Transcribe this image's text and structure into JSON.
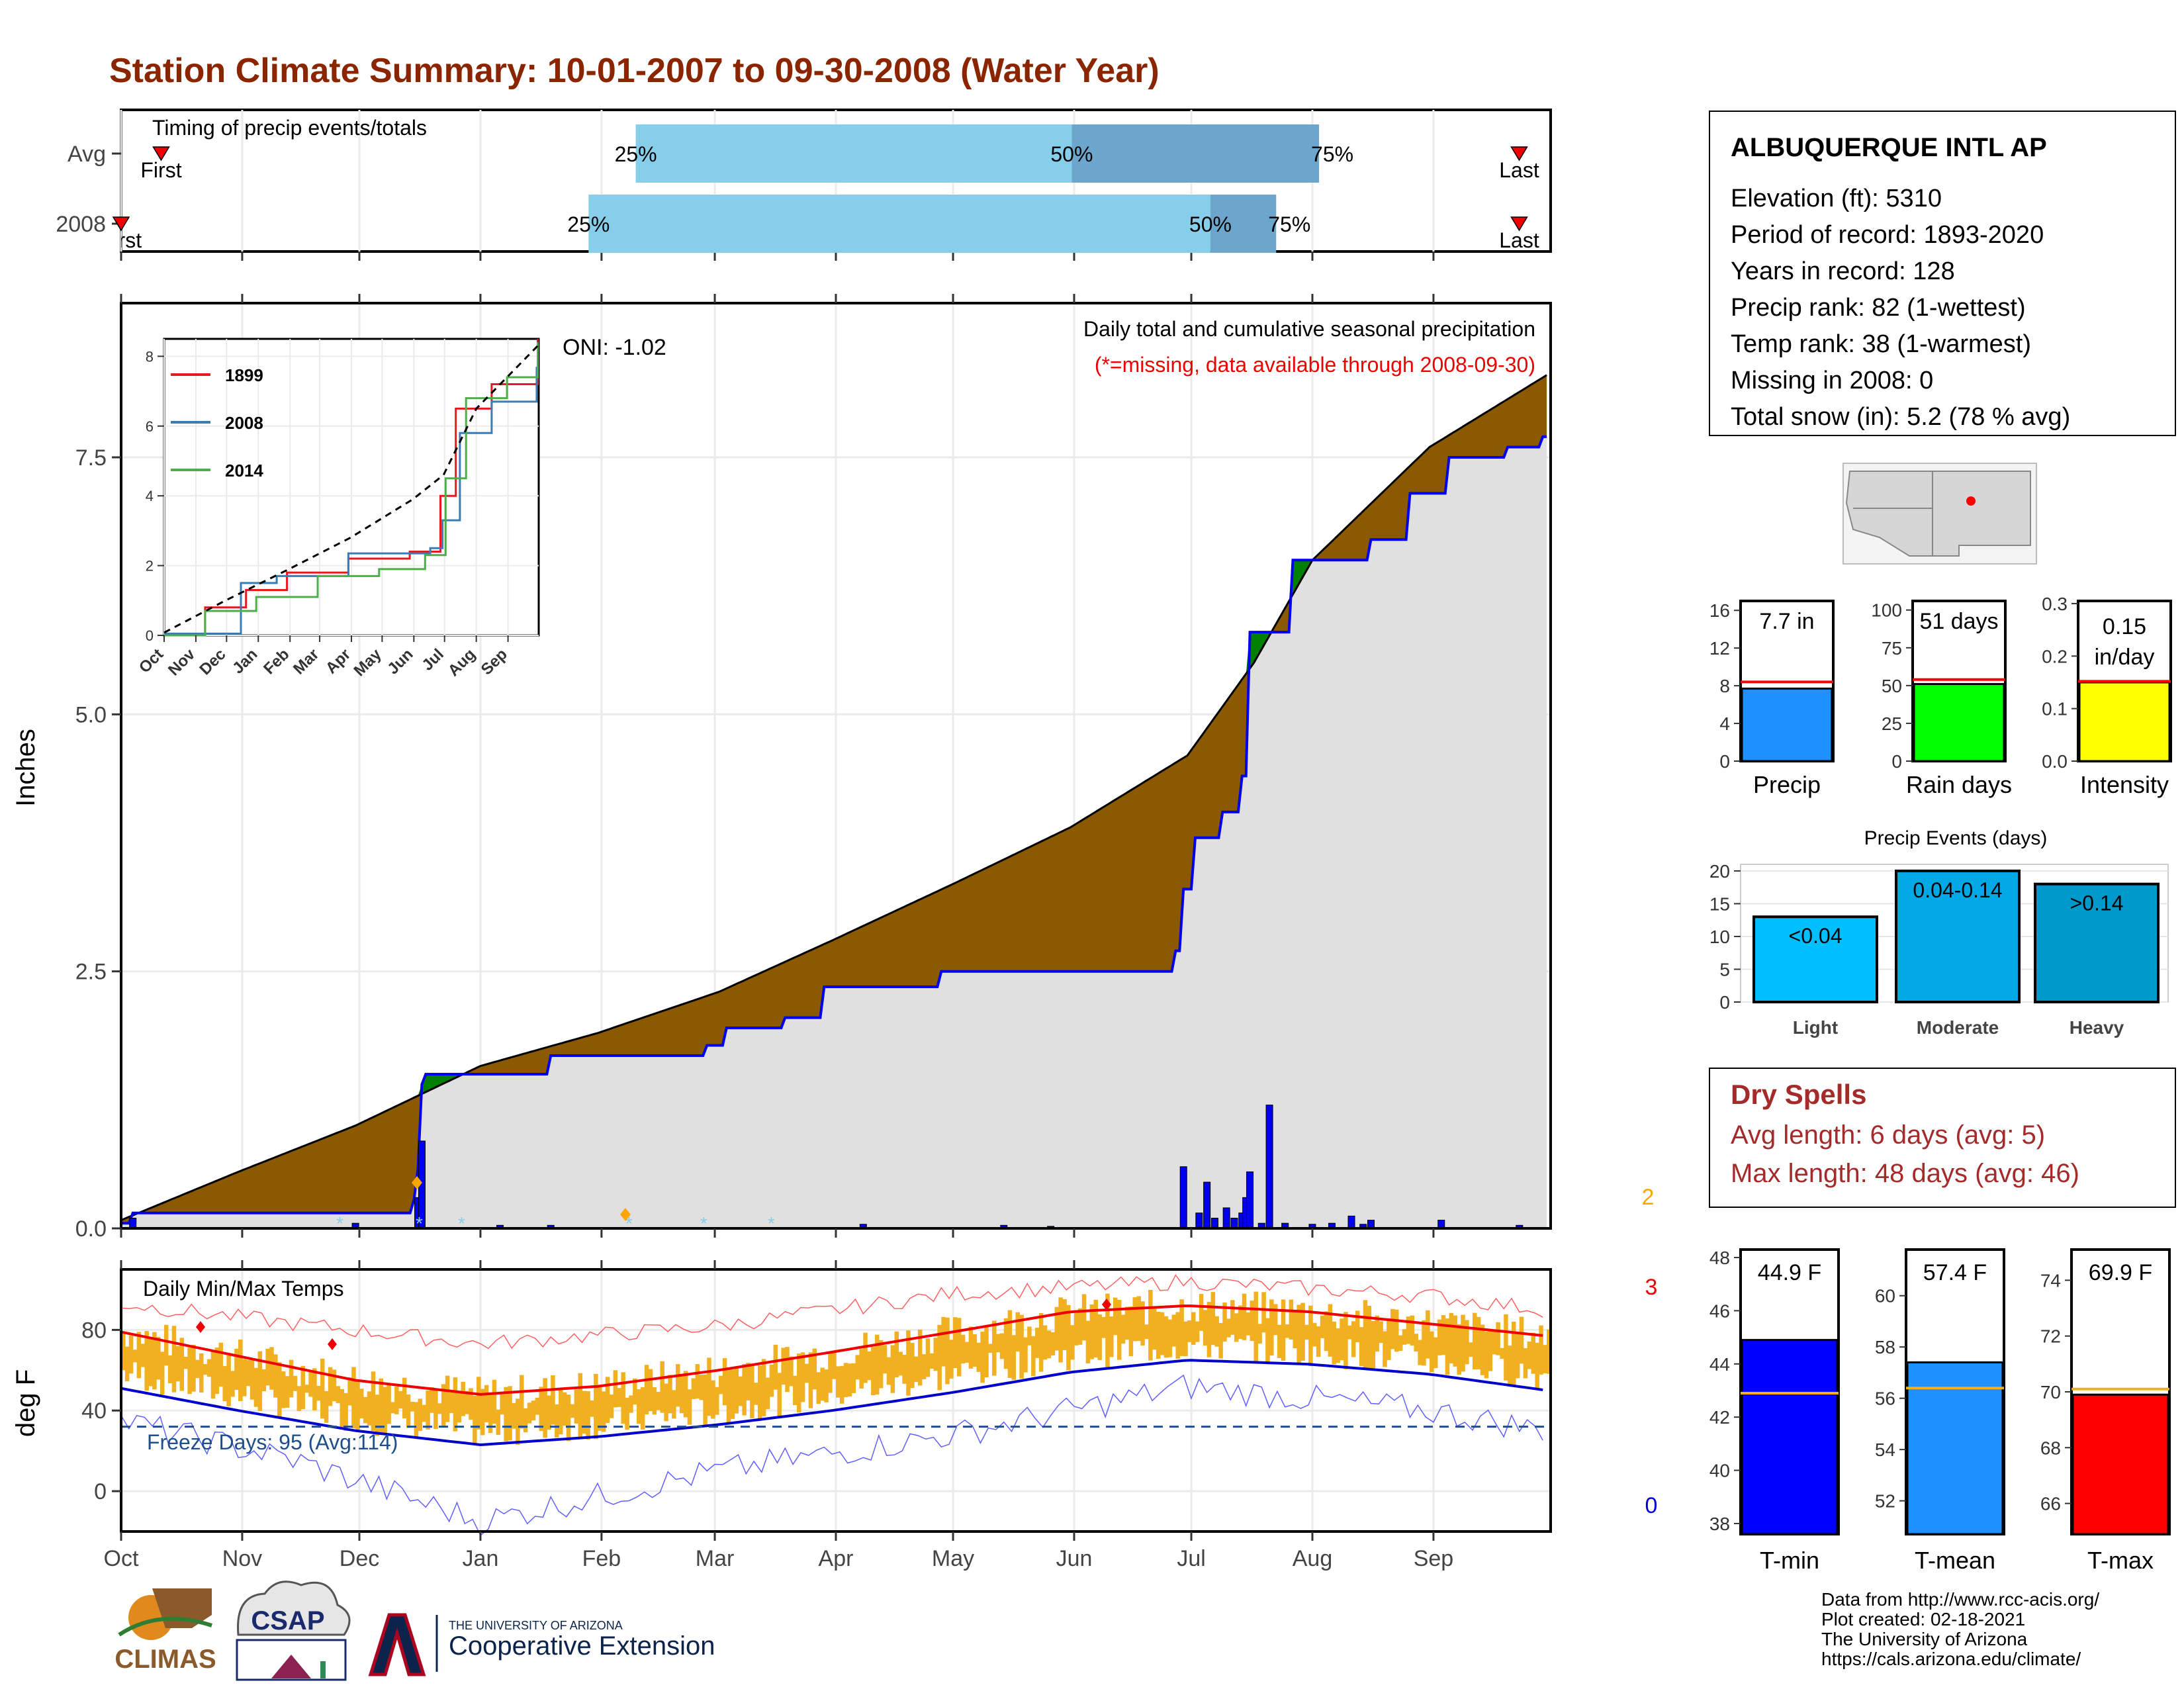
{
  "title": "Station Climate Summary: 10-01-2007 to 09-30-2008 (Water Year)",
  "colors": {
    "title": "#8b2500",
    "brown": "#8b5a00",
    "green": "#008000",
    "blue_line": "#0000ee",
    "grey_fill": "#e0e0e0",
    "light_blue_bar": "#87ceeb",
    "mid_blue_bar": "#6ca6cd",
    "orange_temp": "#f0b020",
    "dry_spells": "#a52a2a"
  },
  "timing": {
    "label": "Timing of precip events/totals",
    "rows": [
      {
        "name": "Avg",
        "first_label": "First",
        "last_label": "Last",
        "first_frac": 0.028,
        "last_frac": 0.978,
        "p25": 0.36,
        "p50": 0.665,
        "p75": 0.838
      },
      {
        "name": "2008",
        "first_label": "First",
        "last_label": "Last",
        "first_frac": 0.0,
        "last_frac": 0.978,
        "p25": 0.327,
        "p50": 0.762,
        "p75": 0.808
      }
    ]
  },
  "month_labels": [
    "Oct",
    "Nov",
    "Dec",
    "Jan",
    "Feb",
    "Mar",
    "Apr",
    "May",
    "Jun",
    "Jul",
    "Aug",
    "Sep"
  ],
  "precip_panel": {
    "ylabel": "Inches",
    "ylim": [
      0,
      9.0
    ],
    "yticks": [
      0.0,
      2.5,
      5.0,
      7.5
    ],
    "ytick_labels": [
      "0.0",
      "2.5",
      "5.0",
      "7.5"
    ],
    "oni": "ONI: -1.02",
    "header": "Daily total and cumulative seasonal precipitation",
    "missing_note": "(*=missing, data available through 2008-09-30)",
    "corner_count": "2"
  },
  "inset": {
    "ylim": [
      0,
      8.5
    ],
    "yticks": [
      "0",
      "2",
      "4",
      "6",
      "8"
    ],
    "legend": [
      "1899",
      "2008",
      "2014"
    ],
    "legend_colors": [
      "#e41a1c",
      "#377eb8",
      "#4daf4a"
    ]
  },
  "temp_panel": {
    "label": "Daily Min/Max Temps",
    "ylabel": "deg F",
    "ylim": [
      -20,
      110
    ],
    "yticks": [
      "0",
      "40",
      "80"
    ],
    "freeze": "Freeze Days: 95 (Avg:114)",
    "count_max": "3",
    "count_min": "0"
  },
  "station": {
    "name": "ALBUQUERQUE INTL AP",
    "lines": [
      "Elevation (ft): 5310",
      "Period of record: 1893-2020",
      "Years in record: 128",
      "Precip rank: 82 (1-wettest)",
      "Temp rank: 38 (1-warmest)",
      "Missing in 2008: 0",
      "Total snow (in): 5.2 (78 % avg)"
    ]
  },
  "mini_bars": [
    {
      "label": "Precip",
      "value_text": "7.7 in",
      "value": 7.7,
      "avg": 8.4,
      "ymax": 17,
      "ticks": [
        "0",
        "4",
        "8",
        "12",
        "16"
      ],
      "tick_values": [
        0,
        4,
        8,
        12,
        16
      ],
      "color": "#1e90ff"
    },
    {
      "label": "Rain days",
      "value_text": "51 days",
      "value": 51,
      "avg": 54,
      "ymax": 106,
      "ticks": [
        "0",
        "25",
        "50",
        "75",
        "100"
      ],
      "tick_values": [
        0,
        25,
        50,
        75,
        100
      ],
      "color": "#00ff00"
    },
    {
      "label": "Intensity",
      "value_text": "0.15 in/day",
      "value_line1": "0.15",
      "value_line2": "in/day",
      "value": 0.15,
      "avg": 0.152,
      "ymax": 0.305,
      "ticks": [
        "0.0",
        "0.1",
        "0.2",
        "0.3"
      ],
      "tick_values": [
        0,
        0.1,
        0.2,
        0.3
      ],
      "color": "#ffff00"
    }
  ],
  "precip_events": {
    "title": "Precip Events (days)",
    "categories": [
      "Light",
      "Moderate",
      "Heavy"
    ],
    "labels": [
      "<0.04",
      "0.04-0.14",
      ">0.14"
    ],
    "values": [
      13,
      20,
      18
    ],
    "ymax": 21,
    "ticks": [
      "0",
      "5",
      "10",
      "15",
      "20"
    ],
    "colors": [
      "#00bfff",
      "#00a9e6",
      "#0099cc"
    ]
  },
  "dry_spells": {
    "title": "Dry Spells",
    "avg_line": "Avg length: 6 days (avg: 5)",
    "max_line": "Max length: 48 days (avg: 46)"
  },
  "temp_bars": [
    {
      "label": "T-min",
      "value_text": "44.9 F",
      "value": 44.9,
      "avg": 42.9,
      "ylim": [
        37.6,
        48.3
      ],
      "ticks": [
        "38",
        "40",
        "42",
        "44",
        "46",
        "48"
      ],
      "tick_values": [
        38,
        40,
        42,
        44,
        46,
        48
      ],
      "color": "#0000ff"
    },
    {
      "label": "T-mean",
      "value_text": "57.4 F",
      "value": 57.4,
      "avg": 56.4,
      "ylim": [
        50.7,
        61.8
      ],
      "ticks": [
        "52",
        "54",
        "56",
        "58",
        "60"
      ],
      "tick_values": [
        52,
        54,
        56,
        58,
        60
      ],
      "color": "#1e90ff"
    },
    {
      "label": "T-max",
      "value_text": "69.9 F",
      "value": 69.9,
      "avg": 70.1,
      "ylim": [
        64.9,
        75.1
      ],
      "ticks": [
        "66",
        "68",
        "70",
        "72",
        "74"
      ],
      "tick_values": [
        66,
        68,
        70,
        72,
        74
      ],
      "color": "#ff0000"
    }
  ],
  "logos": {
    "climas": "CLIMAS",
    "csap": "CSAP",
    "ua_small": "THE UNIVERSITY OF ARIZONA",
    "ua_big": "Cooperative Extension"
  },
  "credits": [
    "Data from http://www.rcc-acis.org/",
    "Plot created: 02-18-2021",
    "The University of Arizona",
    "https://cals.arizona.edu/climate/"
  ],
  "chart_data": [
    {
      "type": "area",
      "title": "Daily total and cumulative seasonal precipitation",
      "ylabel": "Inches",
      "ylim": [
        0,
        9.0
      ],
      "x_unit": "day of water year",
      "avg_cumulative": [
        [
          0,
          0.08
        ],
        [
          30,
          0.55
        ],
        [
          60,
          1.0
        ],
        [
          92,
          1.58
        ],
        [
          122,
          1.9
        ],
        [
          153,
          2.3
        ],
        [
          182,
          2.8
        ],
        [
          213,
          3.35
        ],
        [
          243,
          3.9
        ],
        [
          273,
          4.6
        ],
        [
          290,
          5.5
        ],
        [
          305,
          6.5
        ],
        [
          335,
          7.6
        ],
        [
          365,
          8.3
        ]
      ],
      "cumulative_2008": [
        [
          0,
          0.05
        ],
        [
          3,
          0.15
        ],
        [
          74,
          0.15
        ],
        [
          75,
          0.28
        ],
        [
          76,
          0.58
        ],
        [
          77,
          1.4
        ],
        [
          78,
          1.5
        ],
        [
          100,
          1.5
        ],
        [
          110,
          1.68
        ],
        [
          150,
          1.78
        ],
        [
          155,
          1.95
        ],
        [
          170,
          2.05
        ],
        [
          180,
          2.35
        ],
        [
          200,
          2.35
        ],
        [
          210,
          2.5
        ],
        [
          260,
          2.5
        ],
        [
          270,
          2.7
        ],
        [
          272,
          3.3
        ],
        [
          275,
          3.8
        ],
        [
          282,
          4.05
        ],
        [
          287,
          4.4
        ],
        [
          289,
          5.8
        ],
        [
          300,
          6.5
        ],
        [
          320,
          6.7
        ],
        [
          330,
          7.15
        ],
        [
          340,
          7.5
        ],
        [
          355,
          7.6
        ],
        [
          364,
          7.7
        ]
      ],
      "daily_bars": [
        [
          3,
          0.1
        ],
        [
          60,
          0.05
        ],
        [
          76,
          0.3
        ],
        [
          77,
          0.85
        ],
        [
          97,
          0.03
        ],
        [
          110,
          0.03
        ],
        [
          190,
          0.04
        ],
        [
          226,
          0.03
        ],
        [
          238,
          0.02
        ],
        [
          272,
          0.6
        ],
        [
          276,
          0.15
        ],
        [
          278,
          0.45
        ],
        [
          280,
          0.1
        ],
        [
          283,
          0.2
        ],
        [
          285,
          0.1
        ],
        [
          287,
          0.15
        ],
        [
          288,
          0.3
        ],
        [
          289,
          0.55
        ],
        [
          292,
          0.05
        ],
        [
          294,
          1.2
        ],
        [
          298,
          0.05
        ],
        [
          305,
          0.04
        ],
        [
          310,
          0.05
        ],
        [
          315,
          0.12
        ],
        [
          318,
          0.04
        ],
        [
          320,
          0.08
        ],
        [
          338,
          0.08
        ],
        [
          358,
          0.03
        ]
      ]
    },
    {
      "type": "line",
      "title": "Daily Min/Max Temps",
      "ylabel": "deg F",
      "ylim": [
        -20,
        110
      ],
      "avg_max": [
        [
          0,
          79
        ],
        [
          30,
          67
        ],
        [
          60,
          55
        ],
        [
          92,
          48
        ],
        [
          122,
          52
        ],
        [
          153,
          60
        ],
        [
          182,
          69
        ],
        [
          213,
          79
        ],
        [
          243,
          89
        ],
        [
          273,
          92
        ],
        [
          304,
          89
        ],
        [
          335,
          83
        ],
        [
          365,
          77
        ]
      ],
      "avg_min": [
        [
          0,
          51
        ],
        [
          30,
          40
        ],
        [
          60,
          30
        ],
        [
          92,
          23
        ],
        [
          122,
          27
        ],
        [
          153,
          33
        ],
        [
          182,
          40
        ],
        [
          213,
          49
        ],
        [
          243,
          59
        ],
        [
          273,
          65
        ],
        [
          304,
          63
        ],
        [
          335,
          58
        ],
        [
          365,
          50
        ]
      ],
      "record_max": [
        [
          0,
          93
        ],
        [
          45,
          83
        ],
        [
          92,
          73
        ],
        [
          153,
          82
        ],
        [
          213,
          98
        ],
        [
          273,
          104
        ],
        [
          335,
          97
        ],
        [
          365,
          90
        ]
      ],
      "record_min": [
        [
          0,
          35
        ],
        [
          45,
          15
        ],
        [
          92,
          -15
        ],
        [
          153,
          10
        ],
        [
          213,
          28
        ],
        [
          273,
          52
        ],
        [
          335,
          40
        ],
        [
          365,
          30
        ]
      ],
      "freeze_line": 32
    },
    {
      "type": "line",
      "title": "",
      "ylim": [
        0,
        8.5
      ],
      "x": [
        "Oct",
        "Nov",
        "Dec",
        "Jan",
        "Feb",
        "Mar",
        "Apr",
        "May",
        "Jun",
        "Jul",
        "Aug",
        "Sep"
      ],
      "series": [
        {
          "name": "1899",
          "values": [
            [
              0,
              0
            ],
            [
              40,
              0.8
            ],
            [
              80,
              1.3
            ],
            [
              120,
              1.8
            ],
            [
              180,
              2.2
            ],
            [
              240,
              2.4
            ],
            [
              270,
              4.0
            ],
            [
              285,
              6.5
            ],
            [
              320,
              7.2
            ],
            [
              365,
              8.5
            ]
          ]
        },
        {
          "name": "2008",
          "values": [
            [
              0,
              0.05
            ],
            [
              75,
              1.5
            ],
            [
              110,
              1.7
            ],
            [
              180,
              2.35
            ],
            [
              260,
              2.5
            ],
            [
              272,
              3.3
            ],
            [
              289,
              5.8
            ],
            [
              320,
              6.7
            ],
            [
              364,
              7.7
            ]
          ]
        },
        {
          "name": "2014",
          "values": [
            [
              0,
              0
            ],
            [
              40,
              0.7
            ],
            [
              90,
              1.1
            ],
            [
              150,
              1.7
            ],
            [
              210,
              1.9
            ],
            [
              255,
              2.3
            ],
            [
              275,
              4.5
            ],
            [
              295,
              6.8
            ],
            [
              335,
              7.4
            ],
            [
              365,
              8.4
            ]
          ]
        }
      ],
      "avg": [
        [
          0,
          0.08
        ],
        [
          60,
          1.0
        ],
        [
          122,
          1.9
        ],
        [
          182,
          2.8
        ],
        [
          243,
          3.9
        ],
        [
          273,
          4.6
        ],
        [
          305,
          6.5
        ],
        [
          365,
          8.3
        ]
      ]
    },
    {
      "type": "bar",
      "title": "Precip Events (days)",
      "categories": [
        "Light",
        "Moderate",
        "Heavy"
      ],
      "values": [
        13,
        20,
        18
      ],
      "ylim": [
        0,
        21
      ]
    }
  ]
}
